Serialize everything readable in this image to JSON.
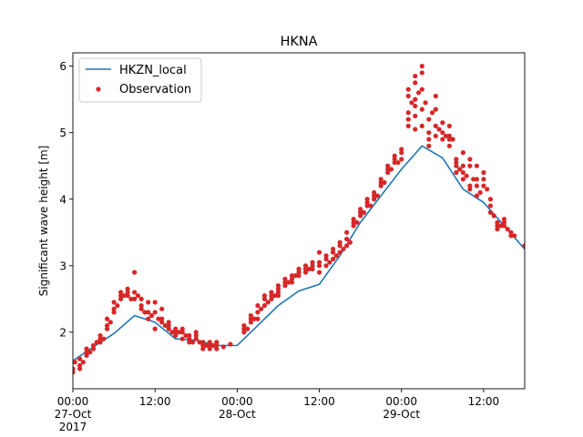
{
  "chart_data": {
    "type": "line",
    "title": "HKNA",
    "xlabel": "",
    "ylabel": "Significant wave height [m]",
    "xlim_hours": [
      0,
      66
    ],
    "ylim": [
      1.15,
      6.2
    ],
    "x_ticks": [
      {
        "hours": 0,
        "lines": [
          "00:00",
          "27-Oct",
          "2017"
        ]
      },
      {
        "hours": 12,
        "lines": [
          "12:00"
        ]
      },
      {
        "hours": 24,
        "lines": [
          "00:00",
          "28-Oct"
        ]
      },
      {
        "hours": 36,
        "lines": [
          "12:00"
        ]
      },
      {
        "hours": 48,
        "lines": [
          "00:00",
          "29-Oct"
        ]
      },
      {
        "hours": 60,
        "lines": [
          "12:00"
        ]
      }
    ],
    "y_ticks": [
      2,
      3,
      4,
      5,
      6
    ],
    "legend": {
      "location": "upper left"
    },
    "colors": {
      "model": "#1f77b4",
      "observation": "#d62728"
    },
    "series": [
      {
        "name": "HKZN_local",
        "kind": "line",
        "x_hours": [
          0,
          3,
          6,
          9,
          12,
          15,
          18,
          21,
          24,
          27,
          30,
          33,
          36,
          39,
          42,
          45,
          48,
          51,
          54,
          57,
          60,
          63,
          66
        ],
        "values": [
          1.57,
          1.78,
          1.98,
          2.25,
          2.15,
          1.9,
          1.88,
          1.8,
          1.8,
          2.1,
          2.4,
          2.62,
          2.72,
          3.15,
          3.65,
          4.05,
          4.45,
          4.8,
          4.62,
          4.15,
          3.95,
          3.6,
          3.25
        ]
      },
      {
        "name": "Observation",
        "kind": "scatter",
        "points": [
          [
            0,
            1.4
          ],
          [
            0,
            1.45
          ],
          [
            0.3,
            1.55
          ],
          [
            1,
            1.45
          ],
          [
            1,
            1.5
          ],
          [
            1,
            1.6
          ],
          [
            1.5,
            1.55
          ],
          [
            2,
            1.7
          ],
          [
            2,
            1.75
          ],
          [
            2,
            1.65
          ],
          [
            2.5,
            1.7
          ],
          [
            3,
            1.8
          ],
          [
            3,
            1.75
          ],
          [
            3.5,
            1.85
          ],
          [
            4,
            1.9
          ],
          [
            4,
            1.95
          ],
          [
            4,
            1.85
          ],
          [
            4.5,
            1.9
          ],
          [
            5,
            2.1
          ],
          [
            5,
            2.05
          ],
          [
            5,
            2.2
          ],
          [
            5.5,
            2.15
          ],
          [
            6,
            2.3
          ],
          [
            6,
            2.35
          ],
          [
            6,
            2.45
          ],
          [
            6.5,
            2.4
          ],
          [
            7,
            2.5
          ],
          [
            7,
            2.55
          ],
          [
            7,
            2.6
          ],
          [
            7.5,
            2.55
          ],
          [
            8,
            2.6
          ],
          [
            8,
            2.55
          ],
          [
            8,
            2.65
          ],
          [
            8.5,
            2.5
          ],
          [
            9,
            2.6
          ],
          [
            9,
            2.5
          ],
          [
            9,
            2.9
          ],
          [
            9.5,
            2.55
          ],
          [
            10,
            2.4
          ],
          [
            10,
            2.35
          ],
          [
            10,
            2.5
          ],
          [
            10.5,
            2.3
          ],
          [
            11,
            2.3
          ],
          [
            11,
            2.2
          ],
          [
            11,
            2.45
          ],
          [
            11.5,
            2.25
          ],
          [
            12,
            2.3
          ],
          [
            12,
            2.05
          ],
          [
            12,
            2.45
          ],
          [
            12.5,
            2.2
          ],
          [
            13,
            2.2
          ],
          [
            13,
            2.15
          ],
          [
            13,
            2.35
          ],
          [
            13.5,
            2.1
          ],
          [
            14,
            2.05
          ],
          [
            14,
            2.1
          ],
          [
            14,
            2.15
          ],
          [
            14.5,
            2.0
          ],
          [
            15,
            2.05
          ],
          [
            15,
            2.0
          ],
          [
            15,
            1.95
          ],
          [
            15.5,
            2.0
          ],
          [
            16,
            2.0
          ],
          [
            16,
            1.9
          ],
          [
            16,
            2.05
          ],
          [
            16.5,
            1.95
          ],
          [
            17,
            1.85
          ],
          [
            17,
            1.9
          ],
          [
            17,
            1.95
          ],
          [
            17.5,
            1.85
          ],
          [
            18,
            1.95
          ],
          [
            18,
            1.9
          ],
          [
            18,
            2.0
          ],
          [
            18.5,
            1.85
          ],
          [
            19,
            1.75
          ],
          [
            19,
            1.8
          ],
          [
            19,
            1.85
          ],
          [
            19.5,
            1.8
          ],
          [
            20,
            1.8
          ],
          [
            20,
            1.75
          ],
          [
            20,
            1.85
          ],
          [
            20.5,
            1.8
          ],
          [
            21,
            1.8
          ],
          [
            21,
            1.75
          ],
          [
            21,
            1.85
          ],
          [
            22,
            1.78
          ],
          [
            23,
            1.82
          ],
          [
            25,
            2.0
          ],
          [
            25,
            2.05
          ],
          [
            25,
            2.1
          ],
          [
            25.5,
            2.05
          ],
          [
            26,
            2.15
          ],
          [
            26,
            2.2
          ],
          [
            26,
            2.25
          ],
          [
            26.5,
            2.2
          ],
          [
            27,
            2.3
          ],
          [
            27,
            2.4
          ],
          [
            27,
            2.2
          ],
          [
            27.5,
            2.35
          ],
          [
            28,
            2.4
          ],
          [
            28,
            2.5
          ],
          [
            28,
            2.55
          ],
          [
            28.5,
            2.45
          ],
          [
            29,
            2.5
          ],
          [
            29,
            2.55
          ],
          [
            29,
            2.6
          ],
          [
            29.5,
            2.55
          ],
          [
            30,
            2.6
          ],
          [
            30,
            2.65
          ],
          [
            30,
            2.7
          ],
          [
            30,
            2.55
          ],
          [
            31,
            2.7
          ],
          [
            31,
            2.75
          ],
          [
            31,
            2.8
          ],
          [
            31.5,
            2.75
          ],
          [
            32,
            2.8
          ],
          [
            32,
            2.85
          ],
          [
            32,
            2.75
          ],
          [
            32.5,
            2.85
          ],
          [
            33,
            2.9
          ],
          [
            33,
            2.95
          ],
          [
            33,
            2.85
          ],
          [
            34,
            2.9
          ],
          [
            34,
            2.95
          ],
          [
            34,
            3.0
          ],
          [
            34.5,
            2.95
          ],
          [
            35,
            3.0
          ],
          [
            35,
            3.05
          ],
          [
            35,
            2.95
          ],
          [
            36,
            2.9
          ],
          [
            36,
            3.0
          ],
          [
            36,
            3.05
          ],
          [
            36,
            3.2
          ],
          [
            37,
            3.0
          ],
          [
            37,
            3.1
          ],
          [
            37,
            3.15
          ],
          [
            37.5,
            3.05
          ],
          [
            38,
            3.1
          ],
          [
            38,
            3.2
          ],
          [
            38,
            3.25
          ],
          [
            38.5,
            3.15
          ],
          [
            39,
            3.2
          ],
          [
            39,
            3.3
          ],
          [
            39,
            3.35
          ],
          [
            39.5,
            3.25
          ],
          [
            40,
            3.3
          ],
          [
            40,
            3.4
          ],
          [
            40,
            3.5
          ],
          [
            40.5,
            3.35
          ],
          [
            41,
            3.6
          ],
          [
            41,
            3.65
          ],
          [
            41,
            3.7
          ],
          [
            41.5,
            3.65
          ],
          [
            42,
            3.75
          ],
          [
            42,
            3.8
          ],
          [
            42,
            3.85
          ],
          [
            42.5,
            3.8
          ],
          [
            43,
            3.9
          ],
          [
            43,
            3.95
          ],
          [
            43,
            4.0
          ],
          [
            43.5,
            3.9
          ],
          [
            44,
            4.0
          ],
          [
            44,
            4.05
          ],
          [
            44,
            4.1
          ],
          [
            44.5,
            4.05
          ],
          [
            45,
            4.2
          ],
          [
            45,
            4.25
          ],
          [
            45,
            4.3
          ],
          [
            45.5,
            4.25
          ],
          [
            46,
            4.4
          ],
          [
            46,
            4.45
          ],
          [
            46,
            4.5
          ],
          [
            46.5,
            4.45
          ],
          [
            47,
            4.55
          ],
          [
            47,
            4.6
          ],
          [
            47,
            4.65
          ],
          [
            47.5,
            4.55
          ],
          [
            48,
            4.6
          ],
          [
            48,
            4.7
          ],
          [
            48,
            4.75
          ],
          [
            49,
            5.65
          ],
          [
            49,
            5.55
          ],
          [
            49,
            5.3
          ],
          [
            49,
            5.2
          ],
          [
            49,
            5.1
          ],
          [
            49.5,
            5.45
          ],
          [
            50,
            5.75
          ],
          [
            50,
            5.85
          ],
          [
            50,
            5.5
          ],
          [
            50,
            5.4
          ],
          [
            50,
            5.25
          ],
          [
            50,
            5.05
          ],
          [
            50.5,
            5.6
          ],
          [
            51,
            6.0
          ],
          [
            51,
            5.9
          ],
          [
            51,
            5.65
          ],
          [
            51,
            5.35
          ],
          [
            51,
            5.1
          ],
          [
            51.5,
            5.45
          ],
          [
            52,
            5.2
          ],
          [
            52,
            5.0
          ],
          [
            52,
            4.9
          ],
          [
            52,
            4.8
          ],
          [
            52.5,
            5.3
          ],
          [
            53,
            5.55
          ],
          [
            53,
            5.35
          ],
          [
            53,
            5.1
          ],
          [
            53,
            4.95
          ],
          [
            53.5,
            5.05
          ],
          [
            54,
            5.15
          ],
          [
            54,
            5.0
          ],
          [
            54,
            4.9
          ],
          [
            54.5,
            4.95
          ],
          [
            55,
            5.1
          ],
          [
            55,
            4.95
          ],
          [
            55,
            4.9
          ],
          [
            55,
            4.8
          ],
          [
            55.5,
            4.9
          ],
          [
            56,
            4.6
          ],
          [
            56,
            4.55
          ],
          [
            56,
            4.5
          ],
          [
            56,
            4.4
          ],
          [
            56.5,
            4.45
          ],
          [
            57,
            4.7
          ],
          [
            57,
            4.5
          ],
          [
            57,
            4.4
          ],
          [
            57,
            4.3
          ],
          [
            57.5,
            4.35
          ],
          [
            58,
            4.6
          ],
          [
            58,
            4.5
          ],
          [
            58,
            4.2
          ],
          [
            58,
            4.15
          ],
          [
            58.5,
            4.3
          ],
          [
            59,
            4.5
          ],
          [
            59,
            4.3
          ],
          [
            59,
            4.2
          ],
          [
            59,
            4.05
          ],
          [
            59.5,
            4.1
          ],
          [
            60,
            4.4
          ],
          [
            60,
            4.3
          ],
          [
            60,
            4.2
          ],
          [
            60.5,
            4.15
          ],
          [
            61,
            4.0
          ],
          [
            61,
            3.9
          ],
          [
            61,
            3.8
          ],
          [
            61.5,
            3.75
          ],
          [
            62,
            3.65
          ],
          [
            62,
            3.6
          ],
          [
            62,
            3.55
          ],
          [
            62.5,
            3.6
          ],
          [
            63,
            3.7
          ],
          [
            63,
            3.65
          ],
          [
            63,
            3.6
          ],
          [
            63.5,
            3.55
          ],
          [
            64,
            3.5
          ],
          [
            64,
            3.45
          ],
          [
            64.5,
            3.45
          ],
          [
            66,
            3.3
          ]
        ]
      }
    ]
  }
}
